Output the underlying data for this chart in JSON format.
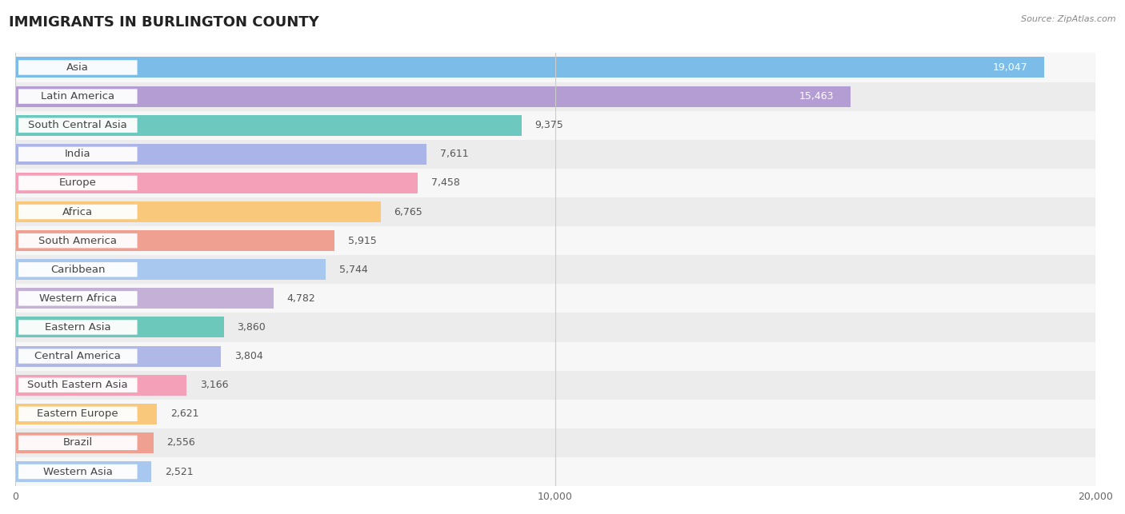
{
  "title": "IMMIGRANTS IN BURLINGTON COUNTY",
  "source": "Source: ZipAtlas.com",
  "categories": [
    "Asia",
    "Latin America",
    "South Central Asia",
    "India",
    "Europe",
    "Africa",
    "South America",
    "Caribbean",
    "Western Africa",
    "Eastern Asia",
    "Central America",
    "South Eastern Asia",
    "Eastern Europe",
    "Brazil",
    "Western Asia"
  ],
  "values": [
    19047,
    15463,
    9375,
    7611,
    7458,
    6765,
    5915,
    5744,
    4782,
    3860,
    3804,
    3166,
    2621,
    2556,
    2521
  ],
  "bar_colors": [
    "#7BBDE8",
    "#B49DD2",
    "#6DC8C0",
    "#AAB4E8",
    "#F4A0B8",
    "#F9C87A",
    "#F0A090",
    "#A8C8F0",
    "#C5B0D8",
    "#6DC8BC",
    "#B0B8E8",
    "#F4A0B8",
    "#F9C87A",
    "#F0A090",
    "#A8C8F0"
  ],
  "row_bg_odd": "#f7f7f7",
  "row_bg_even": "#ececec",
  "xlim": [
    0,
    20000
  ],
  "xticks": [
    0,
    10000,
    20000
  ],
  "xticklabels": [
    "0",
    "10,000",
    "20,000"
  ],
  "bar_height": 0.72,
  "title_fontsize": 13,
  "label_fontsize": 9.5,
  "value_fontsize": 9
}
